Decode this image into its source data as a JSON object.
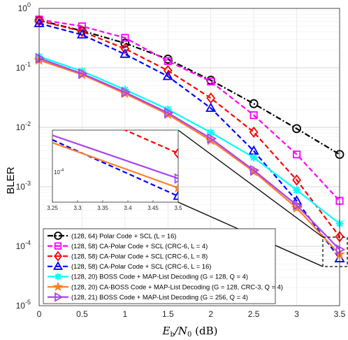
{
  "chart_data": {
    "type": "line",
    "title": "",
    "xlabel": "E_b/N_0 (dB)",
    "xlabel_parts": {
      "main": "E",
      "sub1": "b",
      "slash": "/N",
      "sub2": "0",
      "unit": " (dB)"
    },
    "ylabel": "BLER",
    "xlim": [
      0,
      3.5
    ],
    "ylim_log10": [
      -5,
      0
    ],
    "yscale": "log",
    "grid": true,
    "legend_position": "bottom-left",
    "x_ticks": [
      "0",
      "0.5",
      "1",
      "1.5",
      "2",
      "2.5",
      "3",
      "3.5"
    ],
    "y_ticks": [
      {
        "base": "10",
        "exp": "0"
      },
      {
        "base": "10",
        "exp": "-1"
      },
      {
        "base": "10",
        "exp": "-2"
      },
      {
        "base": "10",
        "exp": "-3"
      },
      {
        "base": "10",
        "exp": "-4"
      },
      {
        "base": "10",
        "exp": "-5"
      }
    ],
    "x": [
      0,
      0.5,
      1,
      1.5,
      2,
      2.5,
      3,
      3.5
    ],
    "series": [
      {
        "name": "(128, 64) Polar Code + SCL (L = 16)",
        "color": "#000000",
        "dash": "dashdot",
        "marker": "circle",
        "values": [
          0.63,
          0.42,
          0.26,
          0.14,
          0.062,
          0.025,
          0.0095,
          0.0035
        ]
      },
      {
        "name": "(128, 58) CA-Polar Code + SCL (CRC-6, L = 4)",
        "color": "#ff00ff",
        "dash": "dash",
        "marker": "square",
        "values": [
          0.65,
          0.5,
          0.32,
          0.13,
          0.059,
          0.016,
          0.0035,
          0.00058
        ]
      },
      {
        "name": "(128, 58) CA-Polar Code + SCL (CRC-6, L = 8)",
        "color": "#ff0000",
        "dash": "dash",
        "marker": "diamond",
        "values": [
          0.62,
          0.41,
          0.21,
          0.09,
          0.031,
          0.0083,
          0.0013,
          0.000145
        ]
      },
      {
        "name": "(128, 58) CA-Polar Code + SCL (CRC-6, L = 16)",
        "color": "#0000ff",
        "dash": "dash",
        "marker": "triangle-up",
        "values": [
          0.56,
          0.36,
          0.17,
          0.072,
          0.021,
          0.004,
          0.00058,
          6.2e-05
        ]
      },
      {
        "name": "(128, 20) BOSS Code + MAP-List Decoding (G = 128, Q = 4)",
        "color": "#00ffff",
        "dash": "solid",
        "marker": "asterisk",
        "values": [
          0.155,
          0.088,
          0.043,
          0.02,
          0.0082,
          0.0031,
          0.00088,
          0.00024
        ]
      },
      {
        "name": "(128, 20) CA-BOSS Code + MAP-List Decoding (G = 128, CRC-3, Q = 4)",
        "color": "#ff7f2a",
        "dash": "solid",
        "marker": "star",
        "values": [
          0.135,
          0.077,
          0.037,
          0.0165,
          0.006,
          0.0018,
          0.00044,
          7.3e-05
        ]
      },
      {
        "name": "(128, 21) BOSS Code + MAP-List Decoding (G = 256, Q = 4)",
        "color": "#aa44ee",
        "dash": "solid",
        "marker": "triangle-right",
        "values": [
          0.145,
          0.08,
          0.039,
          0.0175,
          0.0065,
          0.0019,
          0.00049,
          8.8e-05
        ]
      }
    ],
    "inset": {
      "xlim": [
        3.25,
        3.5
      ],
      "x_ticks": [
        "3.25",
        "3.3",
        "3.35",
        "3.4",
        "3.45",
        "3.5"
      ],
      "y_tick": {
        "base": "10",
        "exp": "-4"
      }
    }
  }
}
